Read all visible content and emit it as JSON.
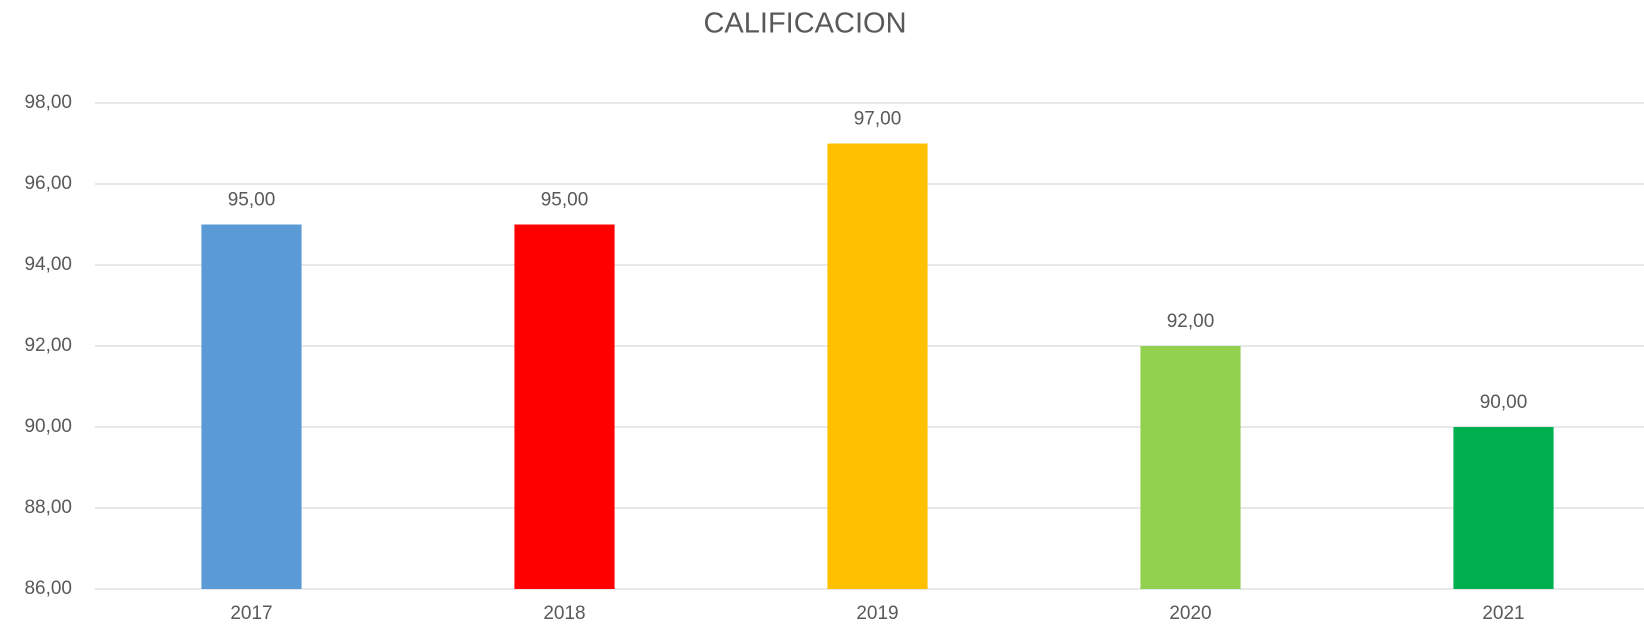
{
  "chart_data": {
    "type": "bar",
    "title": "CALIFICACION",
    "categories": [
      "2017",
      "2018",
      "2019",
      "2020",
      "2021"
    ],
    "values": [
      95,
      95,
      97,
      92,
      90
    ],
    "value_labels": [
      "95,00",
      "95,00",
      "97,00",
      "92,00",
      "90,00"
    ],
    "colors": [
      "#5b9bd5",
      "#ff0000",
      "#ffc000",
      "#92d050",
      "#00b050"
    ],
    "ylim": [
      86,
      98
    ],
    "yticks": [
      {
        "value": 86,
        "label": "86,00"
      },
      {
        "value": 88,
        "label": "88,00"
      },
      {
        "value": 90,
        "label": "90,00"
      },
      {
        "value": 92,
        "label": "92,00"
      },
      {
        "value": 94,
        "label": "94,00"
      },
      {
        "value": 96,
        "label": "96,00"
      },
      {
        "value": 98,
        "label": "98,00"
      }
    ],
    "grid": true
  }
}
